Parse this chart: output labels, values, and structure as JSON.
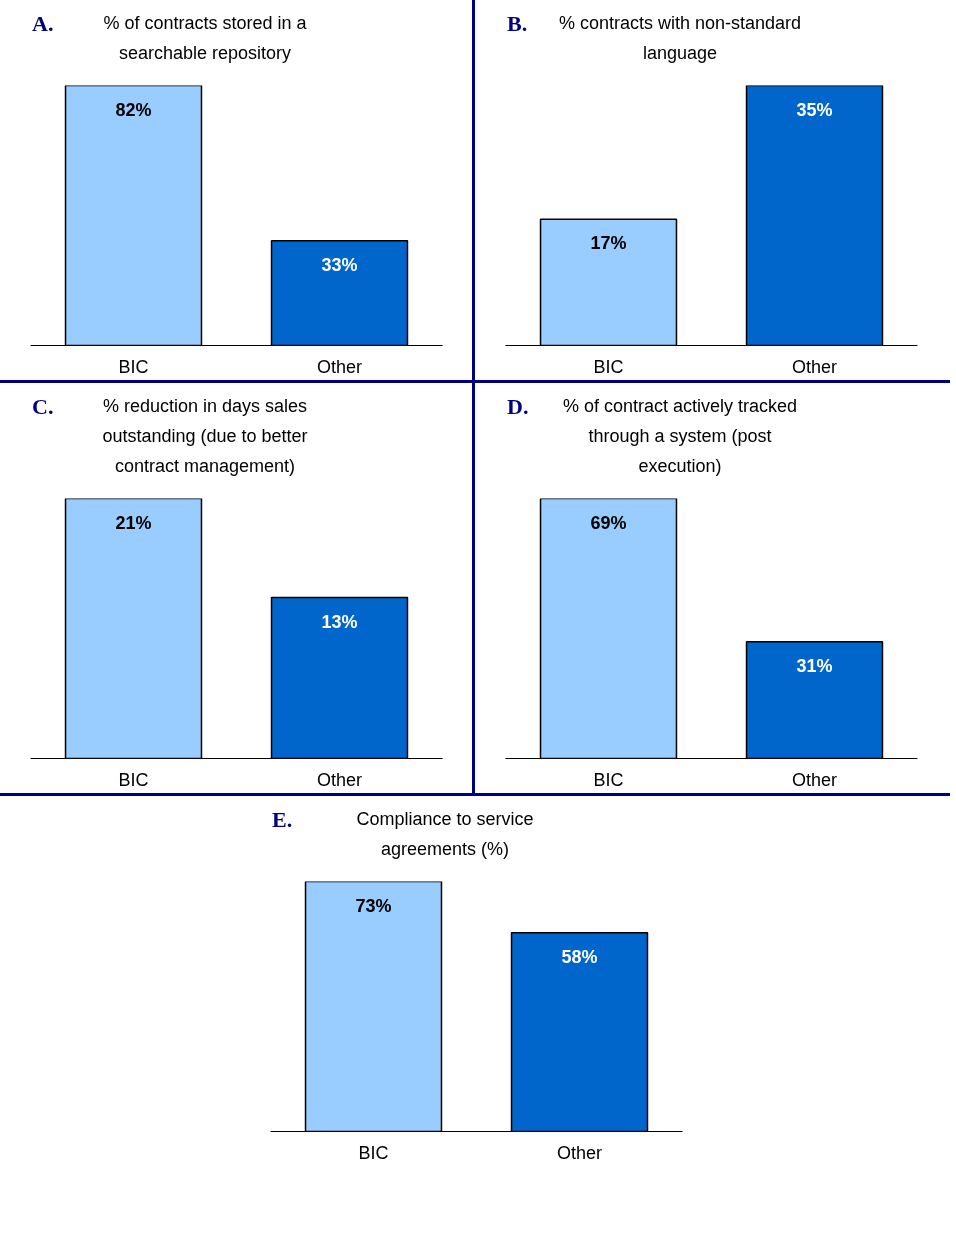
{
  "chart_data": [
    {
      "type": "bar",
      "title": "% of contracts stored in a searchable repository",
      "annotations": [
        "A."
      ],
      "categories": [
        "BIC",
        "Other"
      ],
      "values": [
        82,
        33
      ],
      "colors": [
        "#99ccff",
        "#0066cc"
      ],
      "value_labels": [
        "82%",
        "33%"
      ],
      "grid": false,
      "tick_labels": "x"
    },
    {
      "type": "bar",
      "title": "% contracts with non-standard language",
      "annotations": [
        "B."
      ],
      "categories": [
        "BIC",
        "Other"
      ],
      "values": [
        17,
        35
      ],
      "colors": [
        "#99ccff",
        "#0066cc"
      ],
      "value_labels": [
        "17%",
        "35%"
      ],
      "grid": false,
      "tick_labels": "x"
    },
    {
      "type": "bar",
      "title": "% reduction in days sales outstanding (due to better contract management)",
      "annotations": [
        "C."
      ],
      "categories": [
        "BIC",
        "Other"
      ],
      "values": [
        21,
        13
      ],
      "colors": [
        "#99ccff",
        "#0066cc"
      ],
      "value_labels": [
        "21%",
        "13%"
      ],
      "grid": false,
      "tick_labels": "x"
    },
    {
      "type": "bar",
      "title": "% of contract actively tracked through a system (post execution)",
      "annotations": [
        "D."
      ],
      "categories": [
        "BIC",
        "Other"
      ],
      "values": [
        69,
        31
      ],
      "colors": [
        "#99ccff",
        "#0066cc"
      ],
      "value_labels": [
        "69%",
        "31%"
      ],
      "grid": false,
      "tick_labels": "x"
    },
    {
      "type": "bar",
      "title": "Compliance to service agreements (%)",
      "annotations": [
        "E."
      ],
      "categories": [
        "BIC",
        "Other"
      ],
      "values": [
        73,
        58
      ],
      "colors": [
        "#99ccff",
        "#0066cc"
      ],
      "value_labels": [
        "73%",
        "58%"
      ],
      "grid": false,
      "tick_labels": "x"
    }
  ]
}
